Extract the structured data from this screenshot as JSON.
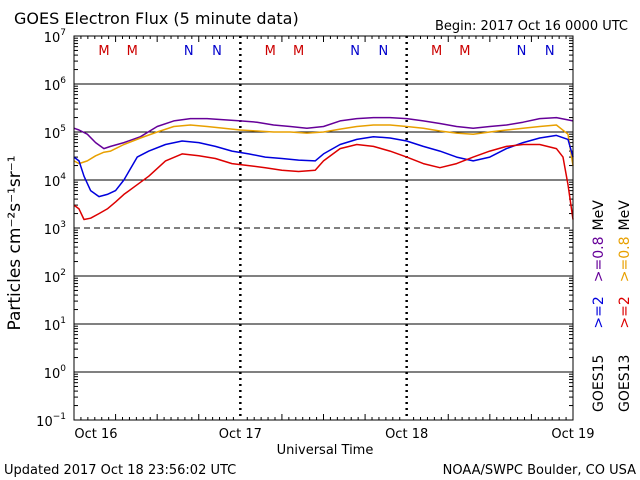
{
  "header": {
    "title": "GOES Electron Flux (5 minute data)",
    "begin": "Begin: 2017 Oct 16 0000 UTC"
  },
  "footer": {
    "updated": "Updated 2017 Oct 18 23:56:02 UTC",
    "credit": "NOAA/SWPC Boulder, CO USA"
  },
  "colors": {
    "goes15_gt2": "#0000dd",
    "goes15_gt08": "#660099",
    "goes13_gt2": "#dd0000",
    "goes13_gt08": "#e8a000",
    "m_marker": "#cc0000",
    "n_marker": "#0000cc"
  },
  "chart_data": {
    "type": "line",
    "title": "GOES Electron Flux (5 minute data)",
    "xlabel": "Universal Time",
    "ylabel": "Particles cm⁻²s⁻¹sr⁻¹",
    "x_unit": "days since 2017 Oct 16 0000 UTC",
    "xlim": [
      0,
      3
    ],
    "ylim": [
      0.1,
      10000000
    ],
    "yscale": "log",
    "grid": true,
    "alert_threshold": 1000,
    "x_ticks": [
      {
        "value": 0,
        "label": "Oct 16"
      },
      {
        "value": 1,
        "label": "Oct 17"
      },
      {
        "value": 2,
        "label": "Oct 18"
      },
      {
        "value": 3,
        "label": "Oct 19"
      }
    ],
    "y_ticks": [
      {
        "base": "10",
        "exp": "7"
      },
      {
        "base": "10",
        "exp": "6"
      },
      {
        "base": "10",
        "exp": "5"
      },
      {
        "base": "10",
        "exp": "4"
      },
      {
        "base": "10",
        "exp": "3"
      },
      {
        "base": "10",
        "exp": "2"
      },
      {
        "base": "10",
        "exp": "1"
      },
      {
        "base": "10",
        "exp": "0"
      },
      {
        "base": "10",
        "exp": "−1"
      }
    ],
    "markers": [
      {
        "label": "M",
        "x": 0.18,
        "satellite": "GOES13"
      },
      {
        "label": "M",
        "x": 0.35,
        "satellite": "GOES15"
      },
      {
        "label": "N",
        "x": 0.69,
        "satellite": "GOES13"
      },
      {
        "label": "N",
        "x": 0.86,
        "satellite": "GOES15"
      },
      {
        "label": "M",
        "x": 1.18,
        "satellite": "GOES13"
      },
      {
        "label": "M",
        "x": 1.35,
        "satellite": "GOES15"
      },
      {
        "label": "N",
        "x": 1.69,
        "satellite": "GOES13"
      },
      {
        "label": "N",
        "x": 1.86,
        "satellite": "GOES15"
      },
      {
        "label": "M",
        "x": 2.18,
        "satellite": "GOES13"
      },
      {
        "label": "M",
        "x": 2.35,
        "satellite": "GOES15"
      },
      {
        "label": "N",
        "x": 2.69,
        "satellite": "GOES13"
      },
      {
        "label": "N",
        "x": 2.86,
        "satellite": "GOES15"
      }
    ],
    "legend": {
      "placement": "right",
      "entries": [
        {
          "label": ">=0.8 MeV",
          "group": "GOES15",
          "color": "#660099"
        },
        {
          "label": ">=2",
          "group": "GOES15",
          "color": "#0000dd"
        },
        {
          "label": ">=0.8 MeV",
          "group": "GOES13",
          "color": "#e8a000"
        },
        {
          "label": ">=2",
          "group": "GOES13",
          "color": "#dd0000"
        }
      ],
      "satellites": [
        "GOES15",
        "GOES13"
      ],
      "unit": "MeV"
    },
    "series": [
      {
        "color": "#660099",
        "x": [
          0,
          0.03,
          0.08,
          0.13,
          0.18,
          0.22,
          0.3,
          0.4,
          0.5,
          0.6,
          0.7,
          0.8,
          0.9,
          1.0,
          1.1,
          1.2,
          1.3,
          1.4,
          1.5,
          1.6,
          1.7,
          1.8,
          1.9,
          2.0,
          2.1,
          2.2,
          2.3,
          2.4,
          2.5,
          2.6,
          2.7,
          2.8,
          2.9,
          3.0
        ],
        "y": [
          120000,
          110000,
          90000,
          60000,
          45000,
          50000,
          60000,
          80000,
          130000,
          170000,
          190000,
          190000,
          180000,
          170000,
          160000,
          140000,
          130000,
          120000,
          130000,
          170000,
          190000,
          200000,
          200000,
          190000,
          170000,
          150000,
          130000,
          120000,
          130000,
          140000,
          160000,
          190000,
          200000,
          170000
        ]
      },
      {
        "color": "#e8a000",
        "x": [
          0,
          0.03,
          0.08,
          0.13,
          0.18,
          0.22,
          0.3,
          0.4,
          0.5,
          0.6,
          0.7,
          0.8,
          0.9,
          1.0,
          1.1,
          1.2,
          1.3,
          1.4,
          1.5,
          1.6,
          1.7,
          1.8,
          1.9,
          2.0,
          2.1,
          2.2,
          2.3,
          2.4,
          2.5,
          2.6,
          2.7,
          2.8,
          2.9,
          2.97,
          3.0
        ],
        "y": [
          25000,
          22000,
          25000,
          32000,
          38000,
          40000,
          55000,
          75000,
          100000,
          130000,
          140000,
          130000,
          120000,
          110000,
          105000,
          100000,
          100000,
          95000,
          100000,
          115000,
          130000,
          140000,
          140000,
          130000,
          120000,
          105000,
          95000,
          90000,
          100000,
          110000,
          120000,
          130000,
          140000,
          90000,
          20000
        ]
      },
      {
        "color": "#0000dd",
        "x": [
          0,
          0.03,
          0.06,
          0.1,
          0.15,
          0.2,
          0.25,
          0.3,
          0.38,
          0.45,
          0.55,
          0.65,
          0.75,
          0.85,
          0.95,
          1.05,
          1.15,
          1.25,
          1.35,
          1.45,
          1.5,
          1.6,
          1.7,
          1.8,
          1.9,
          2.0,
          2.1,
          2.2,
          2.3,
          2.4,
          2.5,
          2.6,
          2.7,
          2.8,
          2.9,
          2.97,
          3.0
        ],
        "y": [
          30000,
          25000,
          12000,
          6000,
          4500,
          5000,
          6000,
          10000,
          30000,
          40000,
          55000,
          65000,
          60000,
          50000,
          40000,
          35000,
          30000,
          28000,
          26000,
          25000,
          35000,
          55000,
          70000,
          80000,
          75000,
          65000,
          50000,
          40000,
          30000,
          25000,
          30000,
          45000,
          60000,
          75000,
          85000,
          70000,
          30000
        ]
      },
      {
        "color": "#dd0000",
        "x": [
          0,
          0.03,
          0.06,
          0.1,
          0.15,
          0.2,
          0.25,
          0.3,
          0.38,
          0.45,
          0.55,
          0.65,
          0.75,
          0.85,
          0.95,
          1.05,
          1.15,
          1.25,
          1.35,
          1.45,
          1.5,
          1.6,
          1.7,
          1.8,
          1.9,
          2.0,
          2.1,
          2.2,
          2.3,
          2.4,
          2.5,
          2.6,
          2.7,
          2.8,
          2.9,
          2.94,
          2.97,
          3.0
        ],
        "y": [
          3000,
          2500,
          1500,
          1600,
          2000,
          2500,
          3500,
          5000,
          8000,
          12000,
          25000,
          35000,
          32000,
          28000,
          22000,
          20000,
          18000,
          16000,
          15000,
          16000,
          25000,
          45000,
          55000,
          50000,
          40000,
          30000,
          22000,
          18000,
          22000,
          30000,
          40000,
          50000,
          55000,
          55000,
          45000,
          30000,
          8000,
          1500
        ]
      }
    ]
  }
}
